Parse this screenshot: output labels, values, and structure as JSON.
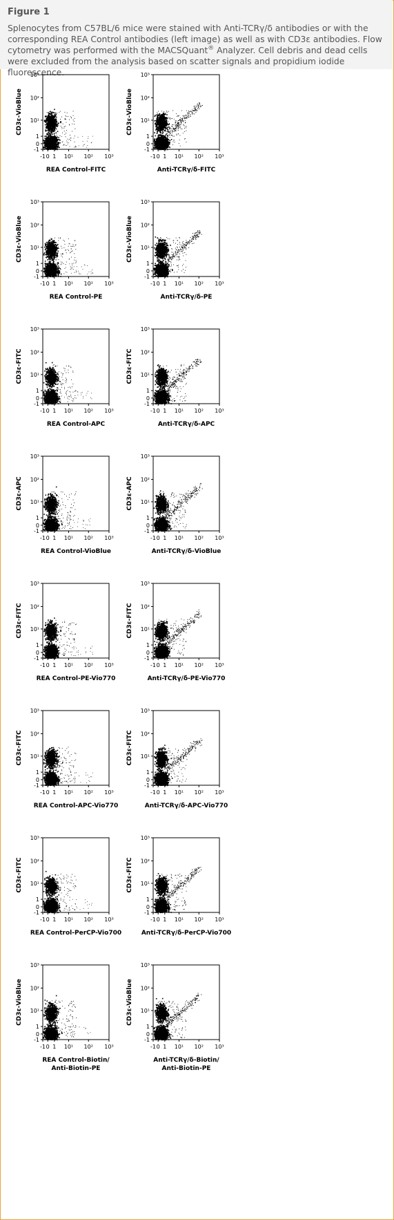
{
  "figure": {
    "title": "Figure 1",
    "caption_part1": "Splenocytes from C57BL/6 mice were stained with Anti-TCRγ/δ antibodies or with the corresponding REA Control antibodies (left image) as well as with CD3ε antibodies. Flow cytometry was performed with the MACSQuant",
    "caption_sup": "®",
    "caption_part2": " Analyzer. Cell debris and dead cells were excluded from the analysis based on scatter signals and propidium iodide fluorescence."
  },
  "colors": {
    "frame": "#e8a33d",
    "header_bg": "#f3f3f3",
    "text": "#555555",
    "dots": "#000000"
  },
  "chart_data": [
    {
      "type": "scatter",
      "xlabel": "REA Control-FITC",
      "ylabel": "CD3ε-VioBlue",
      "kind": "control",
      "populations": [
        {
          "x": 0,
          "y": 0,
          "n": 1500
        },
        {
          "x": 0,
          "y": 8,
          "n": 800
        }
      ]
    },
    {
      "type": "scatter",
      "xlabel": "Anti-TCRγ/δ-FITC",
      "ylabel": "CD3ε-VioBlue",
      "kind": "stained",
      "populations": [
        {
          "x": 0,
          "y": 0,
          "n": 1500
        },
        {
          "x": 0,
          "y": 8,
          "n": 800
        },
        {
          "x": "1–20",
          "y": "1–20",
          "n": 150
        }
      ]
    },
    {
      "type": "scatter",
      "xlabel": "REA Control-PE",
      "ylabel": "CD3ε-VioBlue",
      "kind": "control",
      "populations": [
        {
          "x": 0,
          "y": 0,
          "n": 1500
        },
        {
          "x": 0,
          "y": 8,
          "n": 800
        }
      ]
    },
    {
      "type": "scatter",
      "xlabel": "Anti-TCRγ/δ-PE",
      "ylabel": "CD3ε-VioBlue",
      "kind": "stained",
      "populations": [
        {
          "x": 0,
          "y": 0,
          "n": 1500
        },
        {
          "x": 0,
          "y": 8,
          "n": 800
        },
        {
          "x": "1–30",
          "y": "1–30",
          "n": 160
        }
      ]
    },
    {
      "type": "scatter",
      "xlabel": "REA Control-APC",
      "ylabel": "CD3ε-FITC",
      "kind": "control",
      "populations": [
        {
          "x": 0,
          "y": 0,
          "n": 1500
        },
        {
          "x": 0,
          "y": 8,
          "n": 800
        }
      ]
    },
    {
      "type": "scatter",
      "xlabel": "Anti-TCRγ/δ-APC",
      "ylabel": "CD3ε-FITC",
      "kind": "stained",
      "populations": [
        {
          "x": 0,
          "y": 0,
          "n": 1500
        },
        {
          "x": 0,
          "y": 8,
          "n": 800
        },
        {
          "x": "1–30",
          "y": "1–20",
          "n": 150
        }
      ]
    },
    {
      "type": "scatter",
      "xlabel": "REA Control-VioBlue",
      "ylabel": "CD3ε-APC",
      "kind": "control",
      "populations": [
        {
          "x": 0,
          "y": 0,
          "n": 1500
        },
        {
          "x": 0,
          "y": 8,
          "n": 800
        }
      ]
    },
    {
      "type": "scatter",
      "xlabel": "Anti-TCRγ/δ-VioBlue",
      "ylabel": "CD3ε-APC",
      "kind": "stained",
      "populations": [
        {
          "x": 0,
          "y": 0,
          "n": 1500
        },
        {
          "x": 0,
          "y": 8,
          "n": 800
        },
        {
          "x": "1–10",
          "y": "1–20",
          "n": 90
        }
      ]
    },
    {
      "type": "scatter",
      "xlabel": "REA Control-PE-Vio770",
      "ylabel": "CD3ε-FITC",
      "kind": "control",
      "populations": [
        {
          "x": 0,
          "y": 0,
          "n": 1500
        },
        {
          "x": 0,
          "y": 8,
          "n": 800
        }
      ]
    },
    {
      "type": "scatter",
      "xlabel": "Anti-TCRγ/δ-PE-Vio770",
      "ylabel": "CD3ε-FITC",
      "kind": "stained",
      "populations": [
        {
          "x": 0,
          "y": 0,
          "n": 1500
        },
        {
          "x": 0,
          "y": 8,
          "n": 800
        },
        {
          "x": "1–30",
          "y": "1–20",
          "n": 150
        }
      ]
    },
    {
      "type": "scatter",
      "xlabel": "REA Control-APC-Vio770",
      "ylabel": "CD3ε-FITC",
      "kind": "control",
      "populations": [
        {
          "x": 0,
          "y": 0,
          "n": 1500
        },
        {
          "x": 0,
          "y": 8,
          "n": 800
        }
      ]
    },
    {
      "type": "scatter",
      "xlabel": "Anti-TCRγ/δ-APC-Vio770",
      "ylabel": "CD3ε-FITC",
      "kind": "stained",
      "populations": [
        {
          "x": 0,
          "y": 0,
          "n": 1500
        },
        {
          "x": 0,
          "y": 8,
          "n": 800
        },
        {
          "x": "1–30",
          "y": "1–30",
          "n": 150
        }
      ]
    },
    {
      "type": "scatter",
      "xlabel": "REA Control-PerCP-Vio700",
      "ylabel": "CD3ε-FITC",
      "kind": "control",
      "populations": [
        {
          "x": 0,
          "y": 0,
          "n": 1500
        },
        {
          "x": 0,
          "y": 8,
          "n": 800
        }
      ]
    },
    {
      "type": "scatter",
      "xlabel": "Anti-TCRγ/δ-PerCP-Vio700",
      "ylabel": "CD3ε-FITC",
      "kind": "stained",
      "populations": [
        {
          "x": 0,
          "y": 0,
          "n": 1500
        },
        {
          "x": 0,
          "y": 8,
          "n": 800
        },
        {
          "x": "1–30",
          "y": "1–30",
          "n": 150
        }
      ]
    },
    {
      "type": "scatter",
      "xlabel": "REA Control-Biotin/\nAnti-Biotin-PE",
      "ylabel": "CD3ε-VioBlue",
      "kind": "control",
      "populations": [
        {
          "x": 0,
          "y": 0,
          "n": 1500
        },
        {
          "x": 0,
          "y": 8,
          "n": 800
        }
      ]
    },
    {
      "type": "scatter",
      "xlabel": "Anti-TCRγ/δ-Biotin/\nAnti-Biotin-PE",
      "ylabel": "CD3ε-VioBlue",
      "kind": "stained",
      "populations": [
        {
          "x": 0,
          "y": 0,
          "n": 1500
        },
        {
          "x": 0,
          "y": 8,
          "n": 800
        },
        {
          "x": "1–50",
          "y": "1–50",
          "n": 150
        }
      ]
    }
  ],
  "axes": {
    "x_ticks": [
      "-1",
      "0",
      "1",
      "10¹",
      "10²",
      "10³"
    ],
    "y_ticks": [
      "10³",
      "10²",
      "10¹",
      "1",
      "0",
      "-1"
    ]
  }
}
